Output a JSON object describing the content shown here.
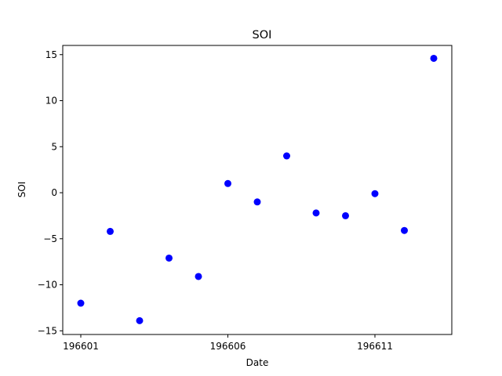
{
  "chart_data": {
    "type": "scatter",
    "title": "SOI",
    "xlabel": "Date",
    "ylabel": "SOI",
    "x": [
      "196601",
      "196602",
      "196603",
      "196604",
      "196605",
      "196606",
      "196607",
      "196608",
      "196609",
      "196610",
      "196611",
      "196612",
      "196613"
    ],
    "values": [
      -12.0,
      -4.2,
      -13.9,
      -7.1,
      -9.1,
      1.0,
      -1.0,
      4.0,
      -2.2,
      -2.5,
      -0.1,
      -4.1,
      14.6
    ],
    "xticks": [
      "196601",
      "196606",
      "196611"
    ],
    "yticks": [
      "−15",
      "−10",
      "−5",
      "0",
      "5",
      "10",
      "15"
    ],
    "ylim": [
      -15.4,
      16
    ],
    "grid": false,
    "legend": "none",
    "marker_color": "#0000ff"
  }
}
